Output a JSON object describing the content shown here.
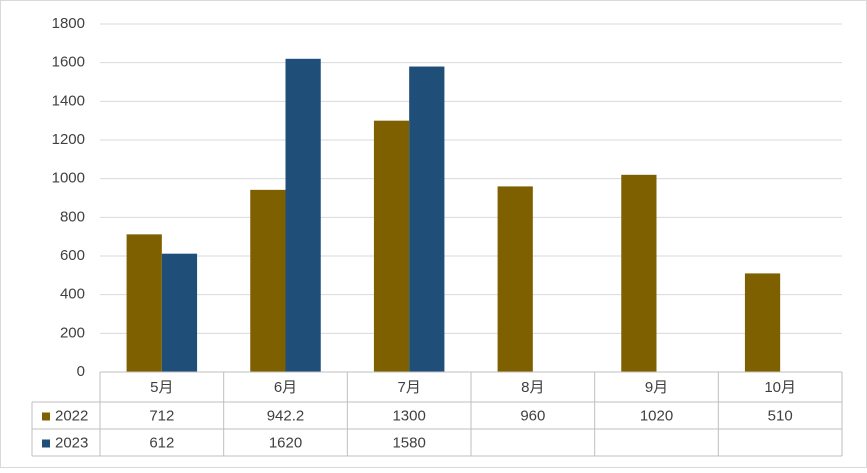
{
  "chart_data": {
    "type": "bar",
    "categories": [
      "5月",
      "6月",
      "7月",
      "8月",
      "9月",
      "10月"
    ],
    "series": [
      {
        "name": "2022",
        "color": "#7f6000",
        "values": [
          712,
          942.2,
          1300,
          960,
          1020,
          510
        ]
      },
      {
        "name": "2023",
        "color": "#1f4e79",
        "values": [
          612,
          1620,
          1580,
          null,
          null,
          null
        ]
      }
    ],
    "ylim": [
      0,
      1800
    ],
    "yticks": [
      0,
      200,
      400,
      600,
      800,
      1000,
      1200,
      1400,
      1600,
      1800
    ],
    "grid": true,
    "data_table": true
  }
}
